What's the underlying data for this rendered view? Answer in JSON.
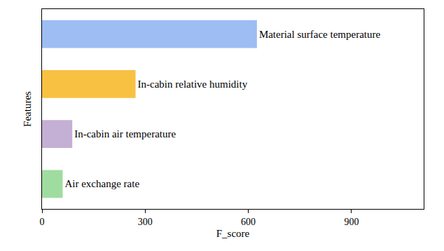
{
  "chart_data": {
    "type": "bar",
    "orientation": "horizontal",
    "xlabel": "F_score",
    "ylabel": "Features",
    "categories": [
      "Material surface temperature",
      "In-cabin relative humidity",
      "In-cabin air temperature",
      "Air exchange rate"
    ],
    "values": [
      625,
      272,
      88,
      60
    ],
    "colors": [
      "#9dbdf3",
      "#f8c142",
      "#c4afd5",
      "#a0dca0"
    ],
    "xlim": [
      0,
      1110
    ],
    "xticks": [
      0,
      300,
      600,
      900
    ],
    "grid": false,
    "tick_labels": "x"
  }
}
